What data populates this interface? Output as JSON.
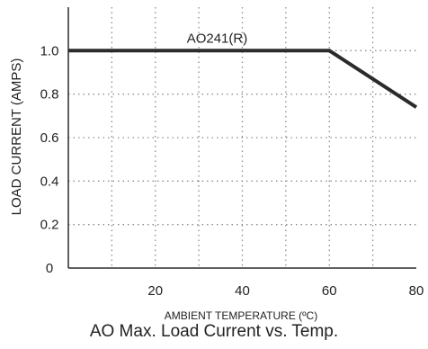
{
  "caption": "AO Max. Load Current vs. Temp.",
  "chart_data": {
    "type": "line",
    "title": "",
    "xlabel": "AMBIENT TEMPERATURE (ºC)",
    "ylabel": "LOAD CURRENT (AMPS)",
    "xlim": [
      0,
      80
    ],
    "ylim": [
      0,
      1.2
    ],
    "x_ticks": [
      20,
      40,
      60,
      80
    ],
    "x_tick_labels": [
      "20",
      "40",
      "60",
      "80"
    ],
    "y_ticks": [
      0,
      0.2,
      0.4,
      0.6,
      0.8,
      1.0
    ],
    "y_tick_labels": [
      "0",
      "0.2",
      "0.4",
      "0.6",
      "0.8",
      "1.0"
    ],
    "x_grid": [
      10,
      20,
      30,
      40,
      50,
      60,
      70
    ],
    "y_grid": [
      0.2,
      0.4,
      0.6,
      0.8,
      1.0
    ],
    "grid": "dotted",
    "series": [
      {
        "name": "AO241(R)",
        "color": "#2b2b2b",
        "points": [
          [
            0,
            1.0
          ],
          [
            60,
            1.0
          ],
          [
            80,
            0.74
          ]
        ]
      }
    ],
    "annotations": [
      {
        "text": "AO241(R)",
        "x": 34,
        "y": 1.0
      }
    ]
  }
}
